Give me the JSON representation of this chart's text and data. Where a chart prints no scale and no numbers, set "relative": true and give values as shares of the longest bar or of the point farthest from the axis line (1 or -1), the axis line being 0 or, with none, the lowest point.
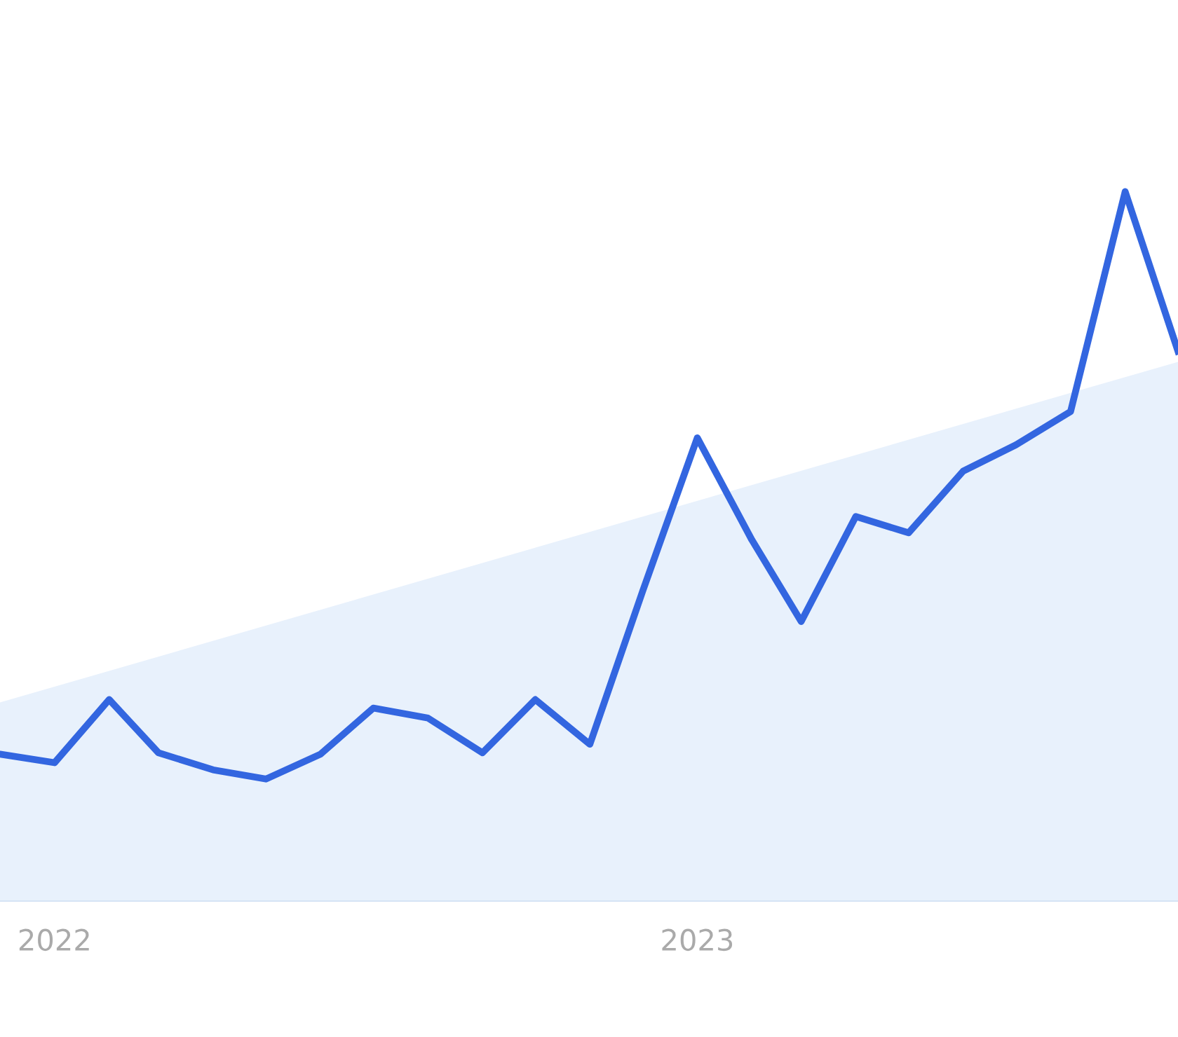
{
  "chart_data": {
    "type": "line",
    "relative": true,
    "x": [
      "2021-12",
      "2022-01",
      "2022-02",
      "2022-03",
      "2022-04",
      "2022-05",
      "2022-06",
      "2022-07",
      "2022-08",
      "2022-09",
      "2022-10",
      "2022-11",
      "2022-12",
      "2023-01",
      "2023-02",
      "2023-03",
      "2023-04",
      "2023-05",
      "2023-06",
      "2023-07",
      "2023-08",
      "2023-09",
      "2023-10"
    ],
    "series": [
      {
        "type": "area",
        "color": "#e8f1fc",
        "x": [
          "2021-12",
          "2023-10"
        ],
        "values": [
          0.28,
          0.76
        ]
      },
      {
        "color": "#3366e0",
        "values": [
          0.207,
          0.195,
          0.284,
          0.209,
          0.185,
          0.172,
          0.207,
          0.272,
          0.258,
          0.209,
          0.284,
          0.221,
          0.437,
          0.653,
          0.509,
          0.394,
          0.542,
          0.519,
          0.606,
          0.643,
          0.69,
          1,
          0.775
        ]
      }
    ],
    "xlim": [
      "2021-12",
      "2023-10"
    ],
    "xticks": [
      {
        "value": "2022-01",
        "label": "2022"
      },
      {
        "value": "2023-01",
        "label": "2023"
      }
    ],
    "tick_labels": "x",
    "legend": false,
    "marker": "none",
    "line_style": "solid"
  }
}
